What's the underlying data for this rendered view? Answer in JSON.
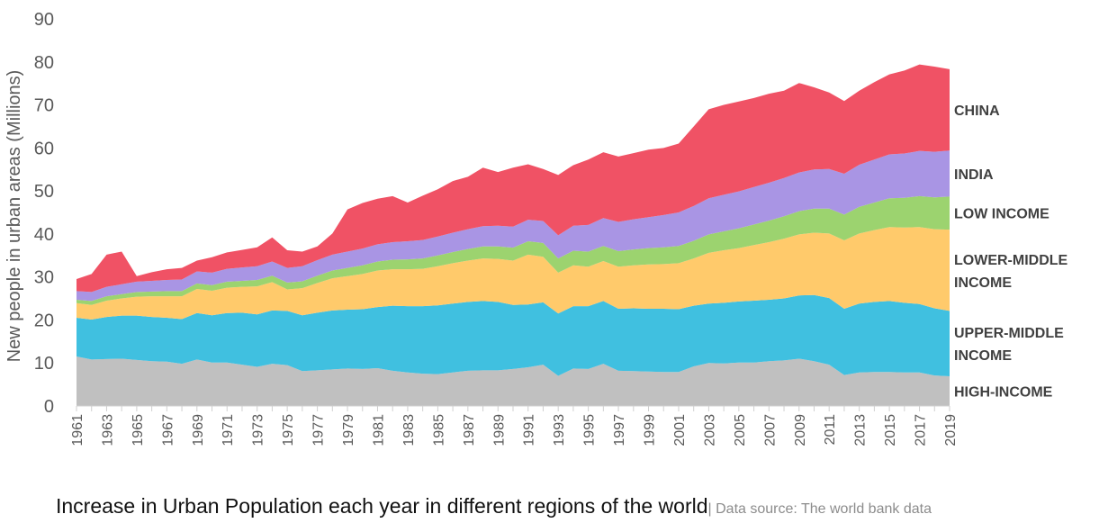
{
  "chart_data": {
    "type": "area",
    "stacked": true,
    "title": "Increase in Urban Population each year in different regions of the world",
    "source": "| Data source: The world bank data",
    "ylabel": "New people in urban areas (Millions)",
    "xlabel": "",
    "ylim": [
      0,
      90
    ],
    "yticks": [
      0,
      10,
      20,
      30,
      40,
      50,
      60,
      70,
      80,
      90
    ],
    "x_start": 1961,
    "x_end": 2019,
    "xtick_labels": [
      "1961",
      "1963",
      "1965",
      "1967",
      "1969",
      "1971",
      "1973",
      "1975",
      "1977",
      "1979",
      "1981",
      "1983",
      "1985",
      "1987",
      "1989",
      "1991",
      "1993",
      "1995",
      "1997",
      "1999",
      "2001",
      "2003",
      "2005",
      "2007",
      "2009",
      "2011",
      "2013",
      "2015",
      "2017",
      "2019"
    ],
    "grid": false,
    "legend": "labels at right end of series",
    "series": [
      {
        "name": "HIGH-INCOME",
        "color": "#c0c0c0",
        "values": [
          11.5,
          10.8,
          10.9,
          11.0,
          10.7,
          10.4,
          10.3,
          9.8,
          10.8,
          10.1,
          10.1,
          9.6,
          9.1,
          9.8,
          9.5,
          8.1,
          8.3,
          8.5,
          8.7,
          8.6,
          8.8,
          8.2,
          7.8,
          7.5,
          7.4,
          7.8,
          8.2,
          8.3,
          8.3,
          8.6,
          9.0,
          9.6,
          7.0,
          8.7,
          8.6,
          9.8,
          8.2,
          8.1,
          8.0,
          7.9,
          7.9,
          9.2,
          10.0,
          9.9,
          10.1,
          10.1,
          10.4,
          10.6,
          11.0,
          10.4,
          9.6,
          7.2,
          7.8,
          7.9,
          7.9,
          7.8,
          7.8,
          7.1,
          6.9
        ]
      },
      {
        "name": "UPPER-MIDDLE INCOME",
        "color": "#40c0e0",
        "values": [
          9.0,
          9.3,
          9.8,
          10.0,
          10.3,
          10.3,
          10.2,
          10.4,
          10.8,
          11.0,
          11.5,
          12.1,
          12.2,
          12.4,
          12.6,
          13.0,
          13.4,
          13.7,
          13.7,
          13.9,
          14.2,
          15.1,
          15.4,
          15.7,
          16.0,
          16.0,
          16.0,
          16.1,
          15.9,
          14.9,
          14.6,
          14.5,
          14.5,
          14.5,
          14.6,
          14.6,
          14.4,
          14.6,
          14.6,
          14.7,
          14.6,
          14.1,
          13.8,
          14.1,
          14.2,
          14.4,
          14.3,
          14.4,
          14.7,
          15.4,
          15.5,
          15.4,
          16.0,
          16.3,
          16.5,
          16.2,
          15.9,
          15.6,
          15.2
        ]
      },
      {
        "name": "LOWER-MIDDLE INCOME",
        "color": "#ffca6b",
        "values": [
          3.4,
          3.4,
          3.8,
          4.0,
          4.4,
          4.8,
          5.0,
          5.3,
          5.6,
          5.7,
          5.9,
          6.0,
          6.5,
          6.6,
          5.0,
          6.3,
          6.9,
          7.5,
          7.8,
          8.2,
          8.5,
          8.5,
          8.6,
          8.7,
          9.1,
          9.4,
          9.6,
          9.9,
          10.0,
          10.3,
          11.6,
          10.6,
          9.5,
          9.5,
          9.2,
          9.3,
          9.8,
          10.0,
          10.3,
          10.4,
          10.7,
          11.0,
          11.8,
          12.2,
          12.4,
          12.9,
          13.4,
          13.9,
          14.2,
          14.5,
          15.0,
          15.9,
          16.3,
          16.7,
          17.2,
          17.5,
          17.9,
          18.4,
          18.9
        ]
      },
      {
        "name": "LOW INCOME",
        "color": "#9cd36f",
        "values": [
          0.8,
          0.9,
          1.0,
          1.0,
          1.1,
          1.1,
          1.2,
          1.2,
          1.3,
          1.3,
          1.4,
          1.4,
          1.5,
          1.5,
          1.6,
          1.6,
          1.7,
          1.8,
          1.9,
          2.0,
          2.1,
          2.2,
          2.3,
          2.4,
          2.5,
          2.6,
          2.7,
          2.8,
          2.9,
          3.0,
          3.1,
          3.2,
          3.3,
          3.4,
          3.5,
          3.5,
          3.6,
          3.7,
          3.8,
          3.9,
          4.0,
          4.1,
          4.3,
          4.4,
          4.6,
          4.8,
          5.0,
          5.2,
          5.4,
          5.6,
          5.8,
          6.0,
          6.2,
          6.4,
          6.7,
          6.9,
          7.2,
          7.4,
          7.7
        ]
      },
      {
        "name": "INDIA",
        "color": "#a995e4",
        "values": [
          2.0,
          2.1,
          2.2,
          2.3,
          2.4,
          2.5,
          2.6,
          2.7,
          2.8,
          2.9,
          3.0,
          3.1,
          3.2,
          3.3,
          3.4,
          3.5,
          3.6,
          3.7,
          3.8,
          3.9,
          4.0,
          4.1,
          4.2,
          4.3,
          4.4,
          4.5,
          4.6,
          4.7,
          4.8,
          4.9,
          5.0,
          5.1,
          5.4,
          5.8,
          6.2,
          6.5,
          6.8,
          7.0,
          7.2,
          7.5,
          7.8,
          8.1,
          8.4,
          8.5,
          8.6,
          8.7,
          8.8,
          8.9,
          9.0,
          9.1,
          9.2,
          9.5,
          9.8,
          10.0,
          10.2,
          10.3,
          10.5,
          10.6,
          10.7
        ]
      },
      {
        "name": "CHINA",
        "color": "#f05265",
        "values": [
          2.8,
          4.2,
          7.5,
          7.6,
          1.3,
          2.0,
          2.5,
          2.7,
          2.5,
          3.6,
          3.8,
          4.1,
          4.4,
          5.6,
          4.1,
          3.4,
          3.2,
          4.9,
          9.8,
          10.6,
          10.6,
          10.7,
          9.0,
          10.3,
          11.0,
          12.0,
          12.2,
          13.6,
          12.5,
          13.7,
          12.9,
          12.1,
          14.0,
          14.1,
          15.2,
          15.3,
          15.2,
          15.4,
          15.7,
          15.6,
          16.0,
          18.5,
          20.7,
          20.9,
          20.9,
          20.7,
          20.7,
          20.3,
          20.8,
          19.1,
          17.8,
          16.9,
          17.2,
          18.0,
          18.6,
          19.3,
          20.1,
          19.8,
          18.9
        ]
      }
    ]
  }
}
